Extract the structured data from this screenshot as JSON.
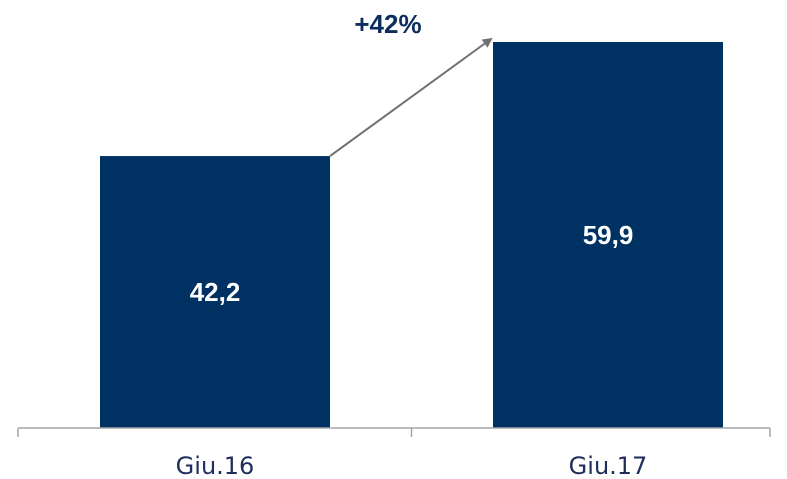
{
  "chart_data": {
    "type": "bar",
    "categories": [
      "Giu.16",
      "Giu.17"
    ],
    "values": [
      42.2,
      59.9
    ],
    "value_labels": [
      "42,2",
      "59,9"
    ],
    "annotation": "+42%",
    "title": "",
    "xlabel": "",
    "ylabel": "",
    "ylim": [
      0,
      59.9
    ],
    "grid": false,
    "legend": "none",
    "bar_color": "#003163",
    "arrow_color": "#707070",
    "axis_color": "#a6a6a6"
  }
}
